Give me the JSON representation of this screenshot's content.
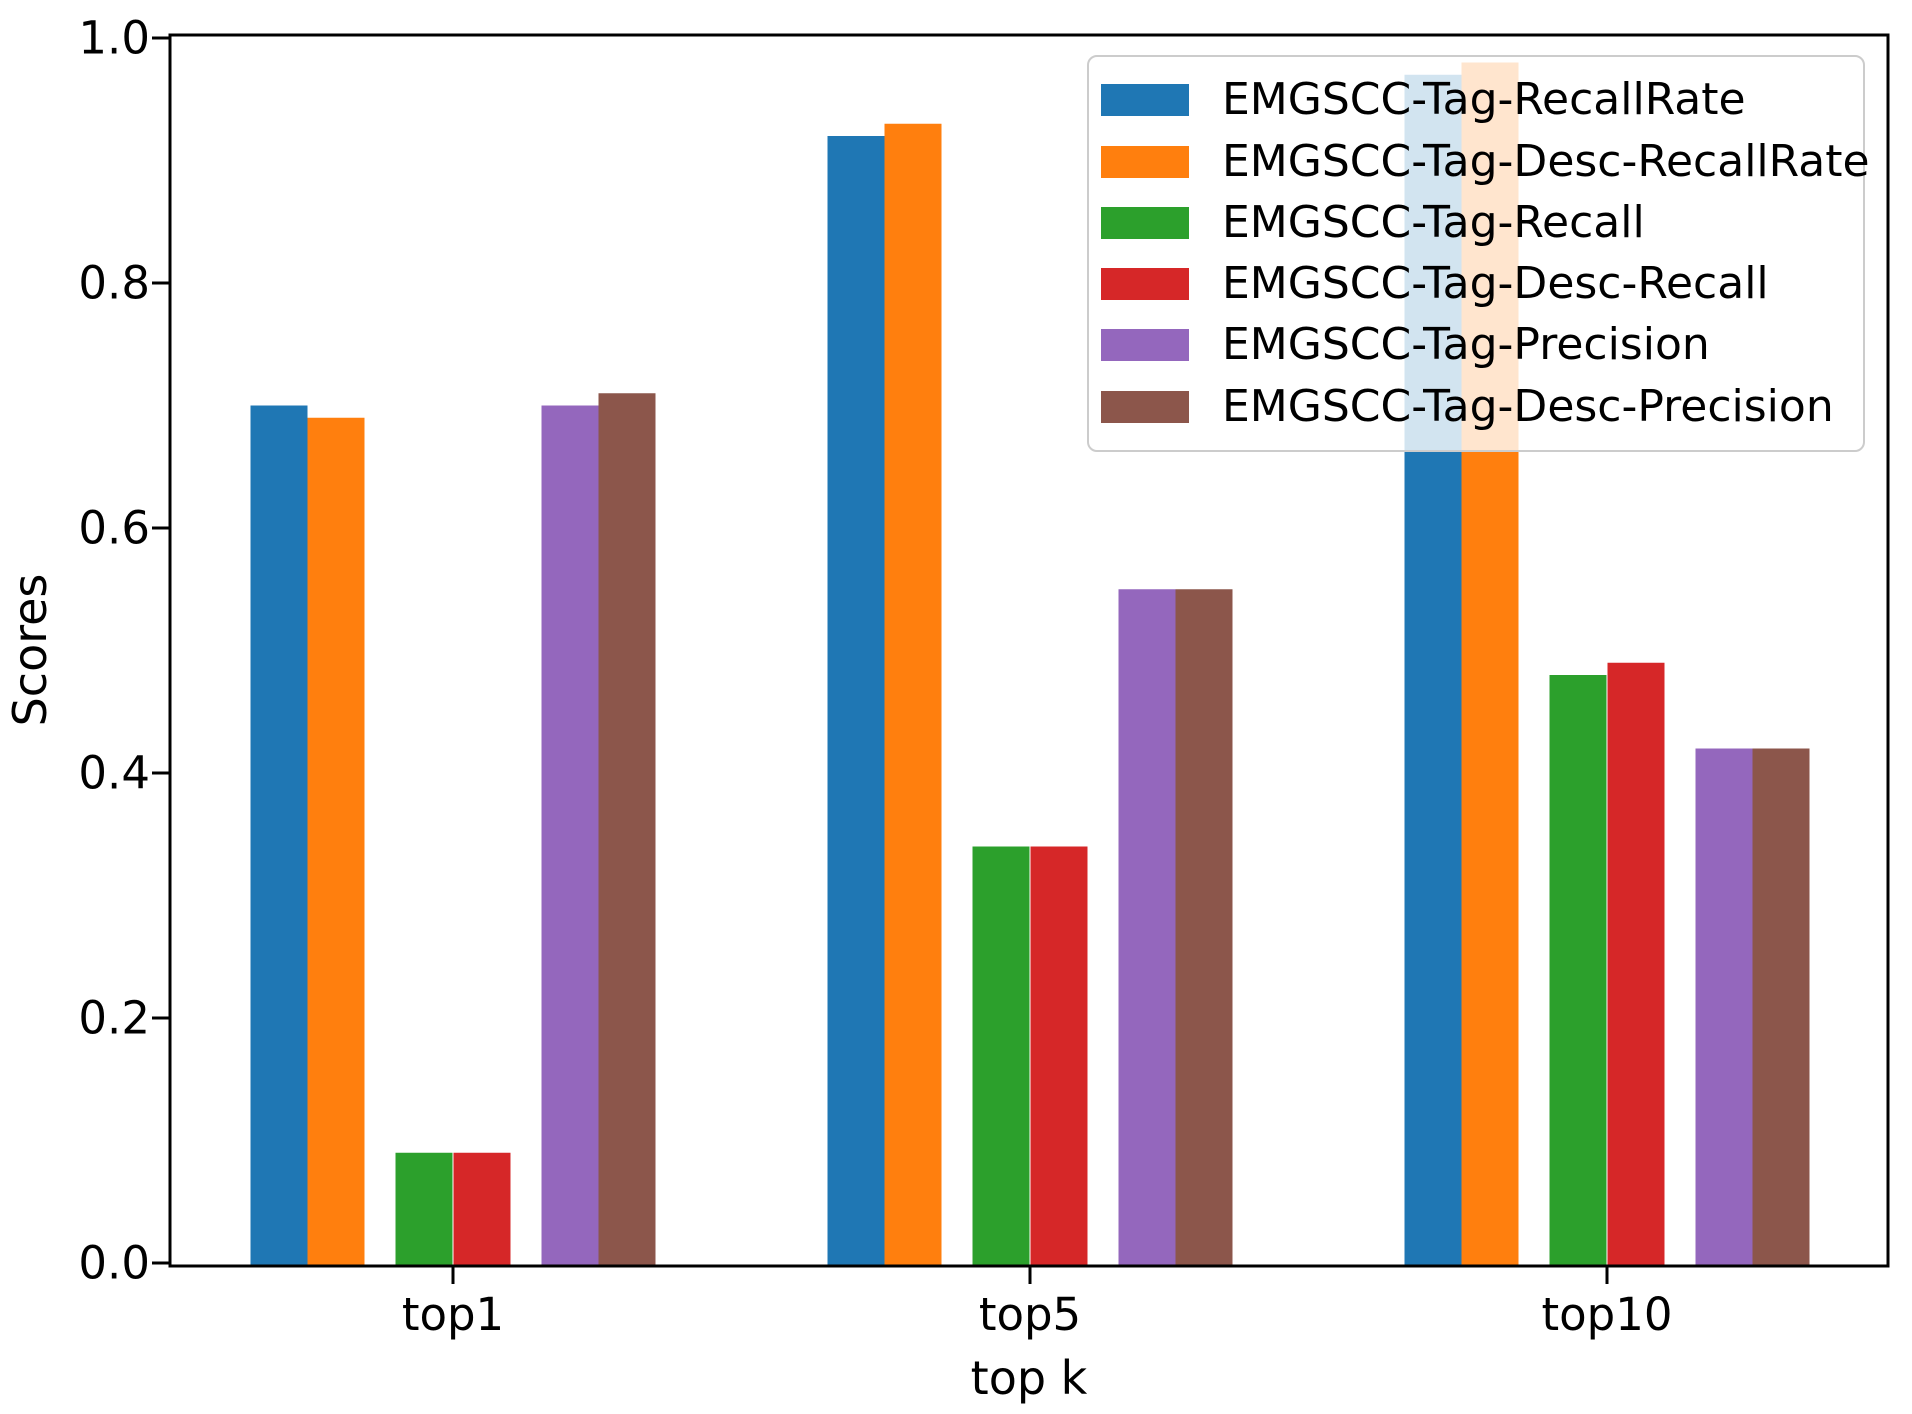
{
  "chart_data": {
    "type": "bar",
    "title": "",
    "xlabel": "top k",
    "ylabel": "Scores",
    "categories": [
      "top1",
      "top5",
      "top10"
    ],
    "series": [
      {
        "name": "EMGSCC-Tag-RecallRate",
        "color": "#1f77b4",
        "values": [
          0.7,
          0.92,
          0.97
        ]
      },
      {
        "name": "EMGSCC-Tag-Desc-RecallRate",
        "color": "#ff7f0e",
        "values": [
          0.69,
          0.93,
          0.98
        ]
      },
      {
        "name": "EMGSCC-Tag-Recall",
        "color": "#2ca02c",
        "values": [
          0.09,
          0.34,
          0.48
        ]
      },
      {
        "name": "EMGSCC-Tag-Desc-Recall",
        "color": "#d62728",
        "values": [
          0.09,
          0.34,
          0.49
        ]
      },
      {
        "name": "EMGSCC-Tag-Precision",
        "color": "#9467bd",
        "values": [
          0.7,
          0.55,
          0.42
        ]
      },
      {
        "name": "EMGSCC-Tag-Desc-Precision",
        "color": "#8c564b",
        "values": [
          0.71,
          0.55,
          0.42
        ]
      }
    ],
    "ylim": [
      0.0,
      1.0
    ],
    "ytick_labels": [
      "0.0",
      "0.2",
      "0.4",
      "0.6",
      "0.8",
      "1.0"
    ],
    "grid": false,
    "legend_position": "upper right",
    "legend_framealpha": 0.8,
    "axis_color": "#000000"
  }
}
